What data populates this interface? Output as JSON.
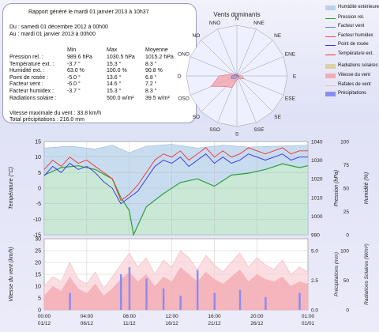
{
  "report": {
    "title": "Rapport généré le mardi 01 janvier 2013 à 10h37",
    "from": "Du : samedi 01 décembre 2012 à 00h00",
    "to": "Au : mardi 01 janvier 2013 à 00h00",
    "headers": {
      "min": "Min",
      "max": "Max",
      "avg": "Moyenne"
    },
    "rows": [
      {
        "label": "Pression rel. :",
        "min": "989.6 hPa",
        "max": "1030.5 hPa",
        "avg": "1015.2 hPa"
      },
      {
        "label": "Température ext. :",
        "min": "-3.7 °",
        "max": "15.3 °",
        "avg": "8.3 °"
      },
      {
        "label": "Humidité ext. :",
        "min": "63.0 %",
        "max": "100.0 %",
        "avg": "90.8 %"
      },
      {
        "label": "Point de rosée :",
        "min": "-5.0 °",
        "max": "13.6 °",
        "avg": "6.8 °"
      },
      {
        "label": "Facteur vent :",
        "min": "-6.0 °",
        "max": "14.6 °",
        "avg": "7.2 °"
      },
      {
        "label": "Facteur humidex :",
        "min": "-3.7 °",
        "max": "15.3 °",
        "avg": "8.3 °"
      },
      {
        "label": "Radiations solaire :",
        "min": "",
        "max": "500.0 w/m²",
        "avg": "39.5 w/m²"
      }
    ],
    "wind_max": "Vitesse maximale du vent : 33.8 km/h",
    "total_precip": "Total précipitations : 216.0 mm"
  },
  "legend": [
    {
      "label": "Humidité extérieure",
      "color": "#b9d2ea",
      "kind": "area"
    },
    {
      "label": "Pression rel.",
      "color": "#2e9e3c",
      "kind": "line"
    },
    {
      "label": "Facteur vent",
      "color": "#5f7fd0",
      "kind": "line"
    },
    {
      "label": "Facteur humidex",
      "color": "#e85060",
      "kind": "line"
    },
    {
      "label": "Point de rosée",
      "color": "#3030e0",
      "kind": "line"
    },
    {
      "label": "Température ext.",
      "color": "#f03030",
      "kind": "line"
    },
    {
      "label": "Radiations solaires",
      "color": "#d9d0a8",
      "kind": "area"
    },
    {
      "label": "Vitesse du vent",
      "color": "#f4aab4",
      "kind": "area"
    },
    {
      "label": "Rafales de vent",
      "color": "#f2b8c0",
      "kind": "line"
    },
    {
      "label": "Précipitations",
      "color": "#8c8cf0",
      "kind": "area"
    }
  ],
  "chart_data": [
    {
      "type": "radar",
      "title": "Vents dominants",
      "directions": [
        "N",
        "NNE",
        "NE",
        "ENE",
        "E",
        "ESE",
        "SE",
        "SSE",
        "S",
        "SSO",
        "SO",
        "OSO",
        "O",
        "ONO",
        "NO",
        "NNO"
      ],
      "series": [
        {
          "values": [
            2,
            1,
            1,
            1,
            4,
            6,
            3,
            3,
            3,
            10,
            12,
            22,
            14,
            4,
            2,
            1
          ]
        },
        {
          "values": [
            1,
            0.5,
            0.5,
            0.5,
            1,
            2,
            1,
            1,
            1,
            2,
            3,
            5,
            4,
            2,
            1,
            0.5
          ]
        }
      ],
      "rmax": 40
    },
    {
      "type": "line",
      "x_start": "01/12",
      "x_ticks": [
        {
          "day": 0,
          "label": "00:00",
          "date": "01/12"
        },
        {
          "day": 5,
          "label": "04:00",
          "date": "06/12"
        },
        {
          "day": 10,
          "label": "08:00",
          "date": "11/12"
        },
        {
          "day": 15,
          "label": "12:00",
          "date": "16/12"
        },
        {
          "day": 20,
          "label": "16:00",
          "date": "21/12"
        },
        {
          "day": 25,
          "label": "20:00",
          "date": "26/12"
        },
        {
          "day": 31,
          "label": "01:00",
          "date": "01/01"
        }
      ],
      "ylabel_left": "Température (°C)",
      "ylabel_right1": "Pression (hPa)",
      "ylabel_right2": "Humidité (%)",
      "y_ticks_left": [
        "15",
        "10",
        "5",
        "0",
        "-5",
        "-10",
        "-15"
      ],
      "y_ticks_right1": [
        "1040",
        "1030",
        "1020",
        "1010",
        "1000",
        "990"
      ],
      "y_ticks_right2": [
        "100",
        "75",
        "50",
        "25",
        "0"
      ],
      "ylim_left": [
        -15,
        15
      ],
      "ylim_right1": [
        990,
        1040
      ],
      "ylim_right2": [
        0,
        100
      ],
      "pressure": [
        [
          0,
          1022
        ],
        [
          2,
          1026
        ],
        [
          4,
          1027
        ],
        [
          6,
          1025
        ],
        [
          8,
          1020
        ],
        [
          9,
          1010
        ],
        [
          10,
          1003
        ],
        [
          10.5,
          990
        ],
        [
          11,
          995
        ],
        [
          12,
          1005
        ],
        [
          14,
          1012
        ],
        [
          16,
          1018
        ],
        [
          18,
          1020
        ],
        [
          20,
          1016
        ],
        [
          22,
          1022
        ],
        [
          24,
          1023
        ],
        [
          26,
          1025
        ],
        [
          28,
          1028
        ],
        [
          30,
          1026
        ],
        [
          31,
          1027
        ]
      ],
      "temperature": [
        [
          0,
          6
        ],
        [
          1,
          9
        ],
        [
          2,
          7
        ],
        [
          3,
          10
        ],
        [
          4,
          8
        ],
        [
          5,
          9
        ],
        [
          6,
          7
        ],
        [
          7,
          5
        ],
        [
          8,
          3
        ],
        [
          9,
          -4
        ],
        [
          10,
          -2
        ],
        [
          11,
          1
        ],
        [
          12,
          5
        ],
        [
          13,
          9
        ],
        [
          14,
          11
        ],
        [
          15,
          10
        ],
        [
          16,
          12
        ],
        [
          17,
          9
        ],
        [
          18,
          11
        ],
        [
          19,
          13
        ],
        [
          20,
          10
        ],
        [
          21,
          12
        ],
        [
          22,
          10
        ],
        [
          23,
          11
        ],
        [
          24,
          13
        ],
        [
          25,
          12
        ],
        [
          26,
          11
        ],
        [
          27,
          12
        ],
        [
          28,
          13
        ],
        [
          29,
          11
        ],
        [
          30,
          12
        ],
        [
          31,
          12
        ]
      ],
      "dewpoint": [
        [
          0,
          4
        ],
        [
          1,
          7
        ],
        [
          2,
          5
        ],
        [
          3,
          8
        ],
        [
          4,
          6
        ],
        [
          5,
          7
        ],
        [
          6,
          5
        ],
        [
          7,
          2
        ],
        [
          8,
          0
        ],
        [
          9,
          -5
        ],
        [
          10,
          -3
        ],
        [
          11,
          -1
        ],
        [
          12,
          3
        ],
        [
          13,
          7
        ],
        [
          14,
          9
        ],
        [
          15,
          8
        ],
        [
          16,
          10
        ],
        [
          17,
          7
        ],
        [
          18,
          9
        ],
        [
          19,
          11
        ],
        [
          20,
          8
        ],
        [
          21,
          10
        ],
        [
          22,
          8
        ],
        [
          23,
          9
        ],
        [
          24,
          11
        ],
        [
          25,
          10
        ],
        [
          26,
          9
        ],
        [
          27,
          10
        ],
        [
          28,
          11
        ],
        [
          29,
          9
        ],
        [
          30,
          10
        ],
        [
          31,
          10
        ]
      ],
      "humidity": [
        [
          0,
          93
        ],
        [
          3,
          95
        ],
        [
          6,
          92
        ],
        [
          8,
          96
        ],
        [
          10,
          88
        ],
        [
          12,
          95
        ],
        [
          15,
          97
        ],
        [
          18,
          93
        ],
        [
          21,
          96
        ],
        [
          24,
          94
        ],
        [
          27,
          95
        ],
        [
          31,
          96
        ]
      ]
    },
    {
      "type": "area",
      "ylabel_left": "Vitesse du vent (km/h)",
      "ylabel_right1": "Précipitations (mm)",
      "ylabel_right2": "Radiations Solaires (W/m²)",
      "y_ticks_left": [
        "30",
        "25",
        "20",
        "15",
        "10",
        "5",
        "0"
      ],
      "y_ticks_right1": [
        "5.0",
        "2.5",
        "0.0"
      ],
      "y_ticks_right2": [
        "100",
        "50",
        "0"
      ],
      "ylim_left": [
        0,
        30
      ],
      "ylim_right1": [
        0,
        5
      ],
      "ylim_right2": [
        0,
        100
      ],
      "wind": [
        [
          0,
          6
        ],
        [
          1,
          10
        ],
        [
          2,
          8
        ],
        [
          3,
          14
        ],
        [
          4,
          9
        ],
        [
          5,
          7
        ],
        [
          6,
          11
        ],
        [
          7,
          6
        ],
        [
          8,
          9
        ],
        [
          9,
          13
        ],
        [
          10,
          16
        ],
        [
          11,
          12
        ],
        [
          12,
          15
        ],
        [
          13,
          10
        ],
        [
          14,
          14
        ],
        [
          15,
          12
        ],
        [
          16,
          18
        ],
        [
          17,
          15
        ],
        [
          18,
          12
        ],
        [
          19,
          16
        ],
        [
          20,
          13
        ],
        [
          21,
          11
        ],
        [
          22,
          14
        ],
        [
          23,
          17
        ],
        [
          24,
          12
        ],
        [
          25,
          15
        ],
        [
          26,
          13
        ],
        [
          27,
          12
        ],
        [
          28,
          14
        ],
        [
          29,
          10
        ],
        [
          30,
          12
        ],
        [
          31,
          11
        ]
      ],
      "gusts": [
        [
          0,
          10
        ],
        [
          1,
          14
        ],
        [
          2,
          12
        ],
        [
          3,
          20
        ],
        [
          4,
          13
        ],
        [
          5,
          11
        ],
        [
          6,
          16
        ],
        [
          7,
          9
        ],
        [
          8,
          14
        ],
        [
          9,
          19
        ],
        [
          10,
          24
        ],
        [
          11,
          18
        ],
        [
          12,
          22
        ],
        [
          13,
          15
        ],
        [
          14,
          21
        ],
        [
          15,
          18
        ],
        [
          16,
          25
        ],
        [
          17,
          22
        ],
        [
          18,
          17
        ],
        [
          19,
          23
        ],
        [
          20,
          19
        ],
        [
          21,
          16
        ],
        [
          22,
          20
        ],
        [
          23,
          24
        ],
        [
          24,
          18
        ],
        [
          25,
          22
        ],
        [
          26,
          19
        ],
        [
          27,
          17
        ],
        [
          28,
          21
        ],
        [
          29,
          15
        ],
        [
          30,
          18
        ],
        [
          31,
          16
        ]
      ],
      "precip": [
        [
          3,
          1.2
        ],
        [
          9,
          2.5
        ],
        [
          10,
          3.0
        ],
        [
          12,
          2.2
        ],
        [
          14,
          1.5
        ],
        [
          16,
          1.0
        ],
        [
          18,
          2.8
        ],
        [
          20,
          1.2
        ],
        [
          23,
          1.4
        ],
        [
          26,
          0.9
        ],
        [
          30,
          1.2
        ]
      ]
    }
  ]
}
